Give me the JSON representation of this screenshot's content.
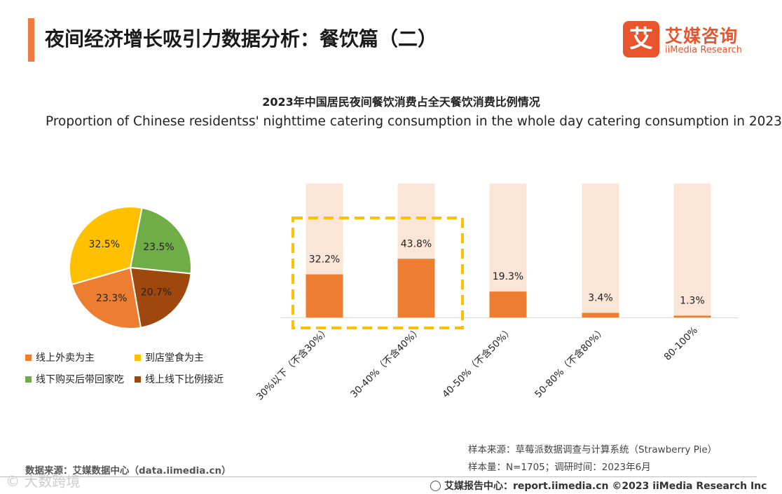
{
  "header": {
    "title": "夜间经济增长吸引力数据分析：餐饮篇（二）",
    "logo_mark": "艾",
    "logo_cn": "艾媒咨询",
    "logo_en": "iiMedia Research"
  },
  "chart_titles": {
    "cn": "2023年中国居民夜间餐饮消费占全天餐饮消费比例情况",
    "en": "Proportion of Chinese residentss' nighttime catering consumption in the whole day catering consumption in 2023"
  },
  "chart_data": [
    {
      "type": "pie",
      "slices": [
        {
          "label": "线上外卖为主",
          "value": 23.3,
          "display": "23.3%",
          "color": "#ed7d31"
        },
        {
          "label": "到店堂食为主",
          "value": 32.5,
          "display": "32.5%",
          "color": "#ffc000"
        },
        {
          "label": "线下购买后带回家吃",
          "value": 23.5,
          "display": "23.5%",
          "color": "#70ad47"
        },
        {
          "label": "线上线下比例接近",
          "value": 20.7,
          "display": "20.7%",
          "color": "#9e480e"
        }
      ]
    },
    {
      "type": "bar",
      "categories": [
        "30%以下（不含30%）",
        "30-40%（不含40%）",
        "40-50%（不含50%）",
        "50-80%（不含80%）",
        "80-100%"
      ],
      "values": [
        32.2,
        43.8,
        19.3,
        3.4,
        1.3
      ],
      "labels": [
        "32.2%",
        "43.8%",
        "19.3%",
        "3.4%",
        "1.3%"
      ],
      "ylim": [
        0,
        100
      ],
      "bar_color": "#ed7d31",
      "background_color": "#fbe5d6",
      "highlight_color": "#ffc000"
    }
  ],
  "footer": {
    "source_left": "数据来源：艾媒数据中心（data.iimedia.cn）",
    "sample_source": "样本来源：草莓派数据调查与计算系统（Strawberry Pie）",
    "sample_size": "样本量：N=1705；调研时间：2023年6月",
    "report_center": "艾媒报告中心：report.iimedia.cn  ©2023  iiMedia Research  Inc",
    "watermark": "© 大数跨境"
  }
}
